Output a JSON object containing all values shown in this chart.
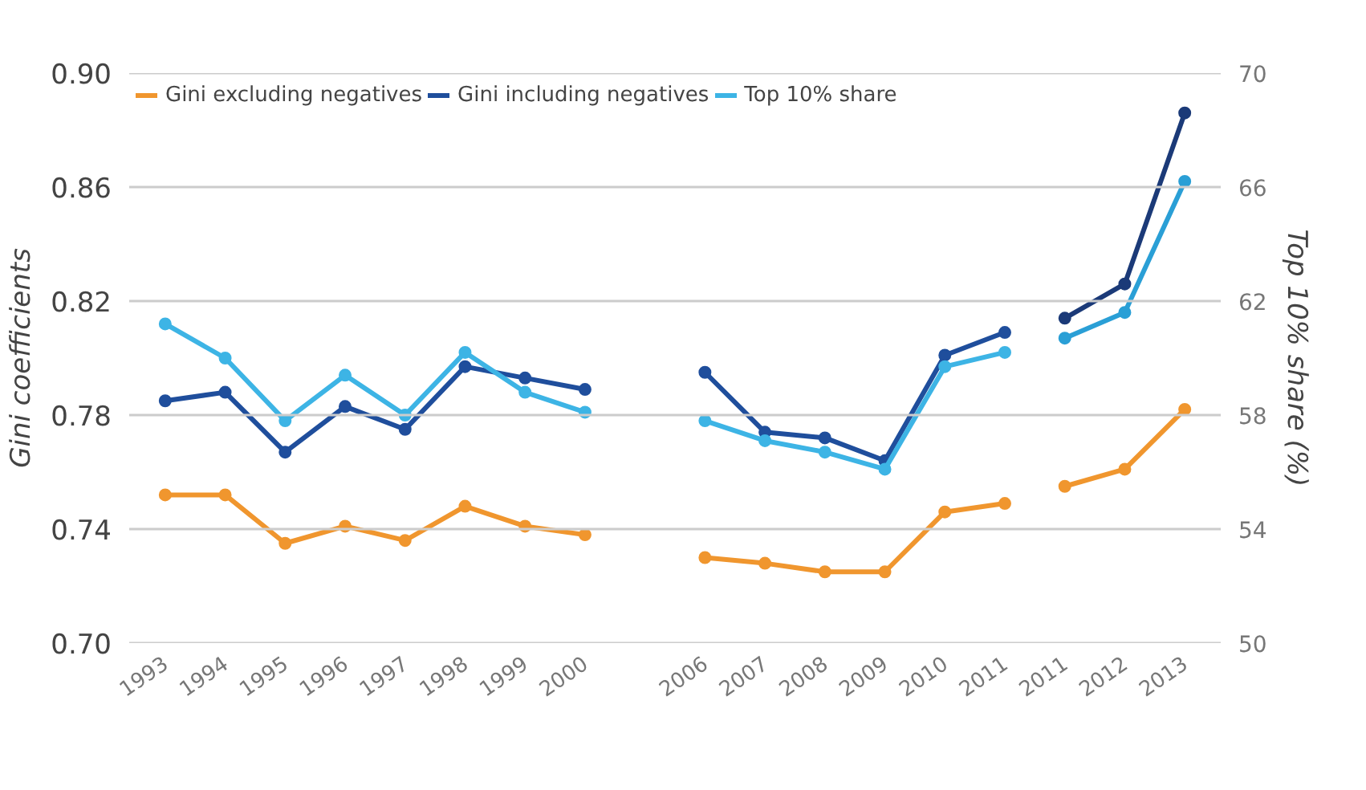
{
  "chart_data": {
    "type": "line",
    "categories": [
      "1993",
      "1994",
      "1995",
      "1996",
      "1997",
      "1998",
      "1999",
      "2000",
      null,
      "2006",
      "2007",
      "2008",
      "2009",
      "2010",
      "2011",
      "2011",
      "2012",
      "2013"
    ],
    "series": [
      {
        "name": "Gini excluding negatives",
        "color": "#f0962e",
        "values": [
          0.752,
          0.752,
          0.735,
          0.741,
          0.736,
          0.748,
          0.741,
          0.738,
          null,
          0.73,
          0.728,
          0.725,
          0.725,
          0.746,
          0.749,
          null,
          null,
          null
        ]
      },
      {
        "name": "Gini including negatives",
        "color": "#1f4e9c",
        "values": [
          0.785,
          0.788,
          0.767,
          0.783,
          0.775,
          0.797,
          0.793,
          0.789,
          null,
          0.795,
          0.774,
          0.772,
          0.764,
          0.801,
          0.809,
          null,
          null,
          null
        ]
      },
      {
        "name": "Top 10% share",
        "color": "#3db4e5",
        "axis": "y2",
        "values": [
          61.2,
          60.0,
          57.8,
          59.4,
          58.0,
          60.2,
          58.8,
          58.1,
          null,
          57.8,
          57.1,
          56.7,
          56.1,
          59.7,
          60.2,
          null,
          null,
          null
        ]
      },
      {
        "color": "#f0962e",
        "values": [
          null,
          null,
          null,
          null,
          null,
          null,
          null,
          null,
          null,
          null,
          null,
          null,
          null,
          null,
          null,
          0.755,
          0.761,
          0.782
        ]
      },
      {
        "color": "#1b3a78",
        "values": [
          null,
          null,
          null,
          null,
          null,
          null,
          null,
          null,
          null,
          null,
          null,
          null,
          null,
          null,
          null,
          0.814,
          0.826,
          0.886
        ]
      },
      {
        "color": "#2a9fd6",
        "axis": "y2",
        "values": [
          null,
          null,
          null,
          null,
          null,
          null,
          null,
          null,
          null,
          null,
          null,
          null,
          null,
          null,
          null,
          60.7,
          61.6,
          66.2
        ]
      }
    ],
    "ylabel": "Gini coefficients",
    "y2label": "Top 10% share (%)",
    "ylim": [
      0.7,
      0.9
    ],
    "yticks": [
      {
        "value": 0.7,
        "label": "0.70"
      },
      {
        "value": 0.74,
        "label": "0.74"
      },
      {
        "value": 0.78,
        "label": "0.78"
      },
      {
        "value": 0.82,
        "label": "0.82"
      },
      {
        "value": 0.86,
        "label": "0.86"
      },
      {
        "value": 0.9,
        "label": "0.90"
      }
    ],
    "y2lim": [
      50,
      70
    ],
    "y2ticks": [
      50,
      54,
      58,
      62,
      66,
      70
    ],
    "grid": "y",
    "legend": "top",
    "marker": "circle",
    "line_style": "solid"
  }
}
